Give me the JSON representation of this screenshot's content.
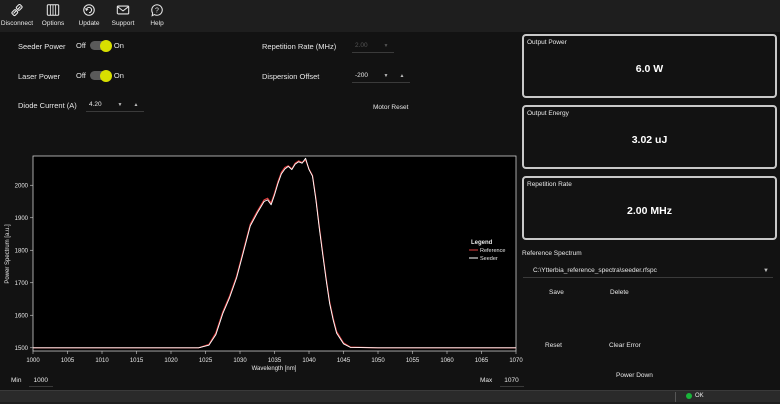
{
  "toolbar": {
    "items": [
      {
        "label": "Disconnect",
        "icon": "disconnect-icon"
      },
      {
        "label": "Options",
        "icon": "options-icon"
      },
      {
        "label": "Update",
        "icon": "update-icon"
      },
      {
        "label": "Support",
        "icon": "support-mail-icon"
      },
      {
        "label": "Help",
        "icon": "help-icon"
      }
    ]
  },
  "controls": {
    "seeder_power": {
      "label": "Seeder Power",
      "off": "Off",
      "on": "On"
    },
    "laser_power": {
      "label": "Laser Power",
      "off": "Off",
      "on": "On"
    },
    "diode_current": {
      "label": "Diode Current (A)",
      "value": "4.20"
    },
    "repetition_rate": {
      "label": "Repetition Rate (MHz)",
      "value": "2.00"
    },
    "dispersion_offset": {
      "label": "Dispersion Offset",
      "value": "-200"
    },
    "motor_reset": "Motor Reset"
  },
  "panels": {
    "output_power": {
      "title": "Output Power",
      "value": "6.0 W"
    },
    "output_energy": {
      "title": "Output Energy",
      "value": "3.02 uJ"
    },
    "repetition_rate": {
      "title": "Repetition Rate",
      "value": "2.00 MHz"
    }
  },
  "reference": {
    "label": "Reference Spectrum",
    "selected": "C:\\Ytterbia_reference_spectra\\seeder.rfspc",
    "save": "Save",
    "delete": "Delete"
  },
  "actions": {
    "reset": "Reset",
    "clear_error": "Clear Error",
    "power_down": "Power Down"
  },
  "range": {
    "min_label": "Min",
    "min_value": "1000",
    "max_label": "Max",
    "max_value": "1070"
  },
  "status": {
    "text": "OK"
  },
  "colors": {
    "toggle_knob": "#d8e000",
    "status_ok": "#19b53a",
    "reference_series": "#e04040",
    "seeder_series": "#ffffff"
  },
  "chart_data": {
    "type": "line",
    "xlabel": "Wavelength [nm]",
    "ylabel": "Power Spectrum [a.u.]",
    "xlim": [
      1000,
      1070
    ],
    "ylim": [
      1490,
      2090
    ],
    "xticks": [
      1000,
      1005,
      1010,
      1015,
      1020,
      1025,
      1030,
      1035,
      1040,
      1045,
      1050,
      1055,
      1060,
      1065,
      1070
    ],
    "yticks": [
      1500,
      1600,
      1700,
      1800,
      1900,
      2000
    ],
    "legend": {
      "title": "Legend",
      "position": "right"
    },
    "series": [
      {
        "name": "Reference",
        "color": "#e04040",
        "x": [
          1000,
          1005,
          1010,
          1015,
          1020,
          1024,
          1025.5,
          1026.5,
          1027.5,
          1028.5,
          1029.5,
          1030.5,
          1031.5,
          1032.5,
          1033.5,
          1034,
          1034.5,
          1035,
          1035.5,
          1036,
          1036.5,
          1037,
          1037.5,
          1038,
          1038.5,
          1039,
          1039.5,
          1040,
          1040.5,
          1041,
          1041.5,
          1042,
          1042.5,
          1043,
          1043.5,
          1044,
          1045,
          1046,
          1050,
          1055,
          1060,
          1065,
          1070
        ],
        "y": [
          1500,
          1500,
          1500,
          1500,
          1500,
          1500,
          1510,
          1545,
          1610,
          1660,
          1720,
          1800,
          1880,
          1920,
          1955,
          1960,
          1945,
          1975,
          2010,
          2040,
          2055,
          2060,
          2050,
          2068,
          2075,
          2070,
          2078,
          2050,
          2030,
          1960,
          1870,
          1790,
          1710,
          1640,
          1590,
          1550,
          1515,
          1502,
          1500,
          1500,
          1500,
          1500,
          1500
        ]
      },
      {
        "name": "Seeder",
        "color": "#ffffff",
        "x": [
          1000,
          1005,
          1010,
          1015,
          1020,
          1024,
          1025.5,
          1026.5,
          1027.5,
          1028.5,
          1029.5,
          1030.5,
          1031.5,
          1032.5,
          1033.5,
          1034,
          1034.5,
          1035,
          1035.5,
          1036,
          1036.5,
          1037,
          1037.5,
          1038,
          1038.5,
          1039,
          1039.5,
          1040,
          1040.5,
          1041,
          1041.5,
          1042,
          1042.5,
          1043,
          1043.5,
          1044,
          1045,
          1046,
          1050,
          1055,
          1060,
          1065,
          1070
        ],
        "y": [
          1500,
          1500,
          1500,
          1500,
          1500,
          1500,
          1508,
          1540,
          1605,
          1655,
          1715,
          1795,
          1875,
          1915,
          1950,
          1955,
          1940,
          1970,
          2005,
          2035,
          2050,
          2058,
          2048,
          2065,
          2072,
          2068,
          2083,
          2048,
          2028,
          1955,
          1865,
          1785,
          1705,
          1635,
          1585,
          1545,
          1512,
          1501,
          1500,
          1500,
          1500,
          1500,
          1500
        ]
      }
    ]
  }
}
